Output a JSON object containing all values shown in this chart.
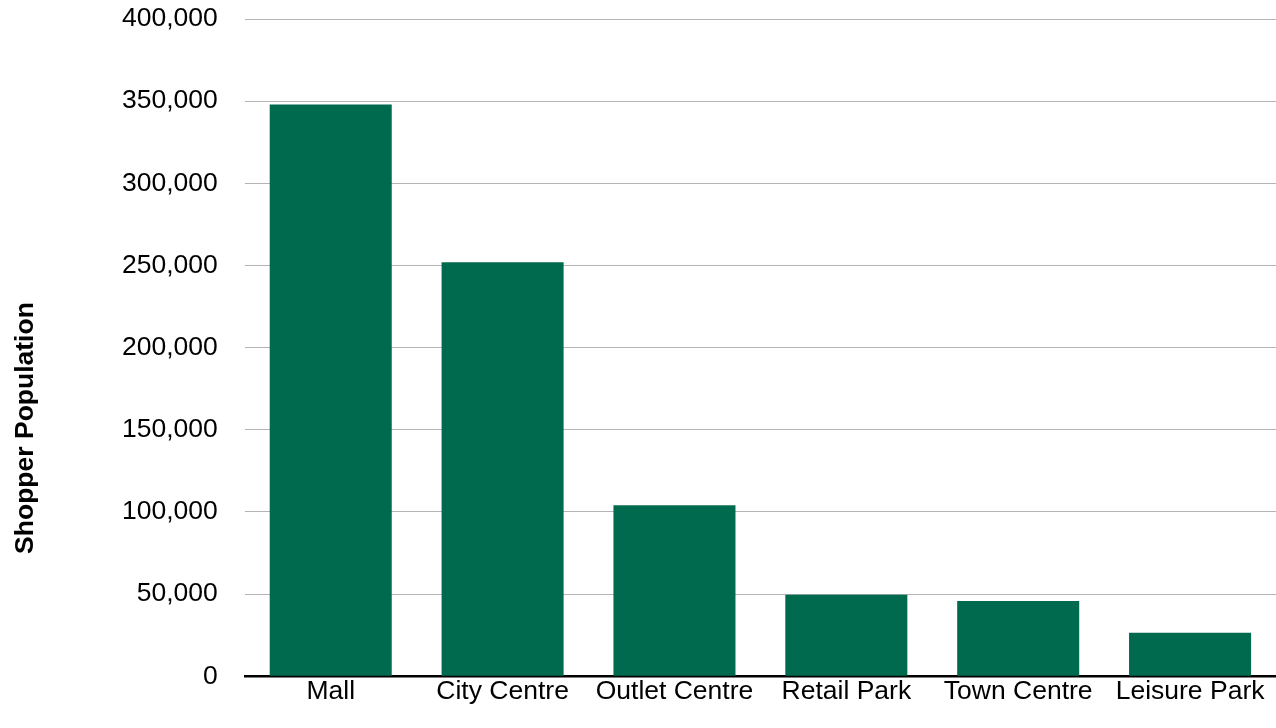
{
  "chart_data": {
    "type": "bar",
    "ylabel": "Shopper Population",
    "categories": [
      "Mall",
      "City Centre",
      "Outlet Centre",
      "Retail Park",
      "Town Centre",
      "Leisure Park"
    ],
    "values": [
      348000,
      252000,
      104000,
      49500,
      45700,
      26400
    ],
    "color": "#006a4e",
    "ylim": [
      0,
      400000
    ],
    "yticks": [
      {
        "value": 0,
        "label": "0"
      },
      {
        "value": 50000,
        "label": "50,000"
      },
      {
        "value": 100000,
        "label": "100,000"
      },
      {
        "value": 150000,
        "label": "150,000"
      },
      {
        "value": 200000,
        "label": "200,000"
      },
      {
        "value": 250000,
        "label": "250,000"
      },
      {
        "value": 300000,
        "label": "300,000"
      },
      {
        "value": 350000,
        "label": "350,000"
      },
      {
        "value": 400000,
        "label": "400,000"
      }
    ],
    "grid": "y"
  }
}
